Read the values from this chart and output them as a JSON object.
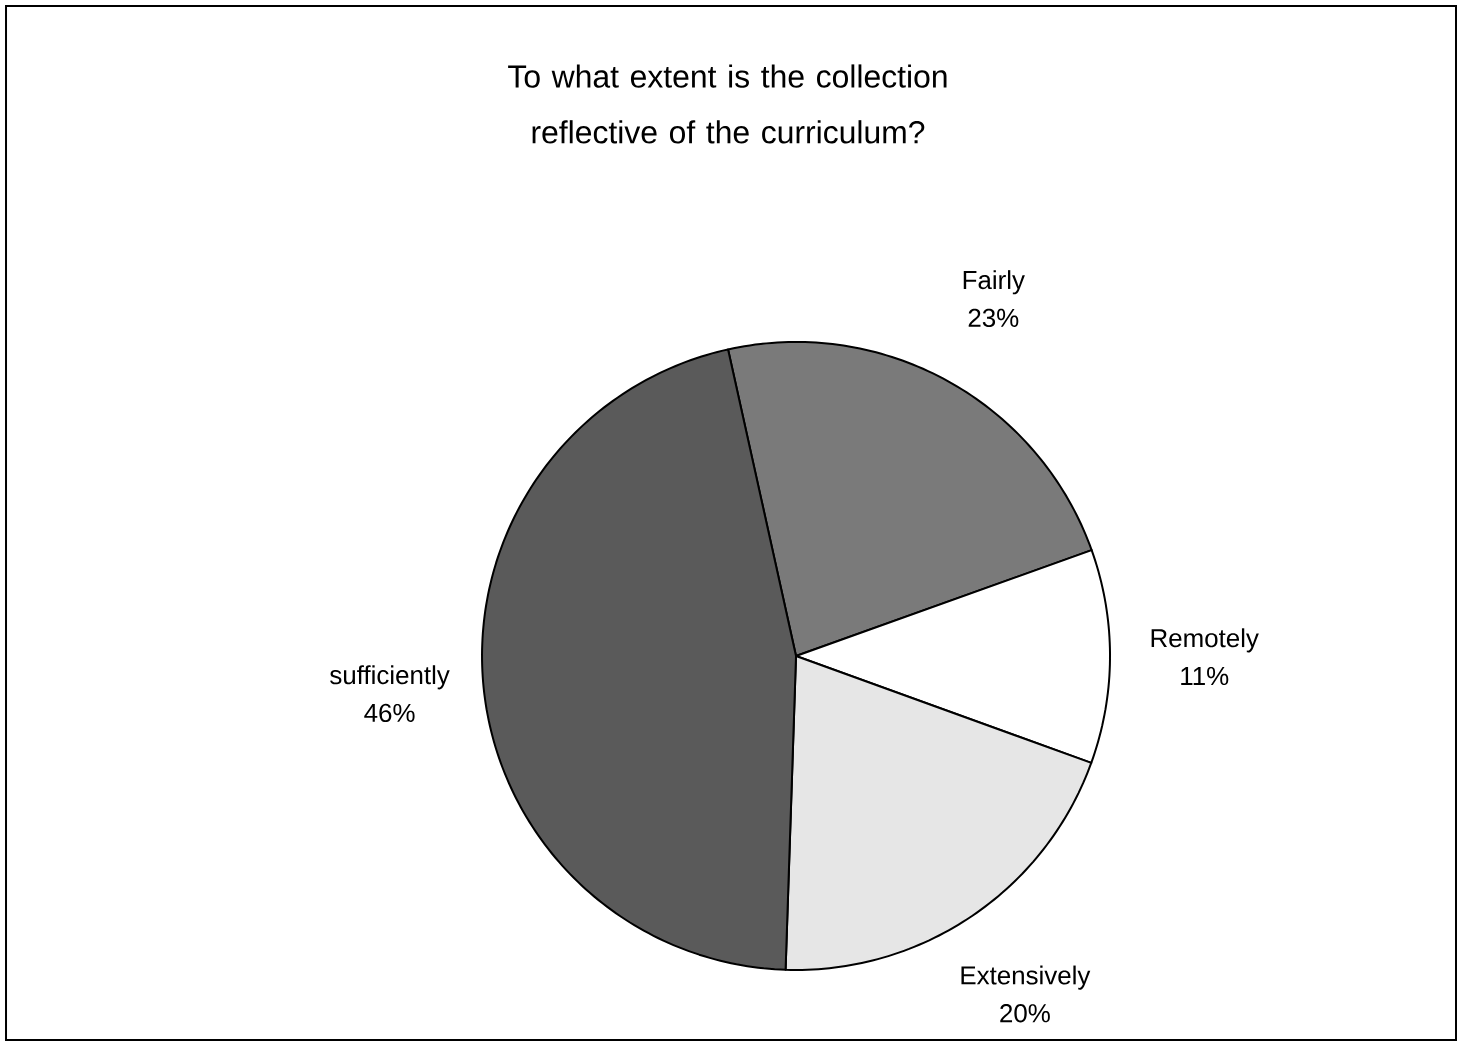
{
  "chart_data": {
    "type": "pie",
    "title": "To what extent is the collection reflective of the curriculum?",
    "categories": [
      "Fairly",
      "Remotely",
      "Extensively",
      "sufficiently"
    ],
    "values": [
      23,
      11,
      20,
      46
    ],
    "value_labels": [
      "23%",
      "11%",
      "20%",
      "46%"
    ],
    "colors": [
      "#7a7a7a",
      "#ffffff",
      "#e6e6e6",
      "#5a5a5a"
    ]
  }
}
